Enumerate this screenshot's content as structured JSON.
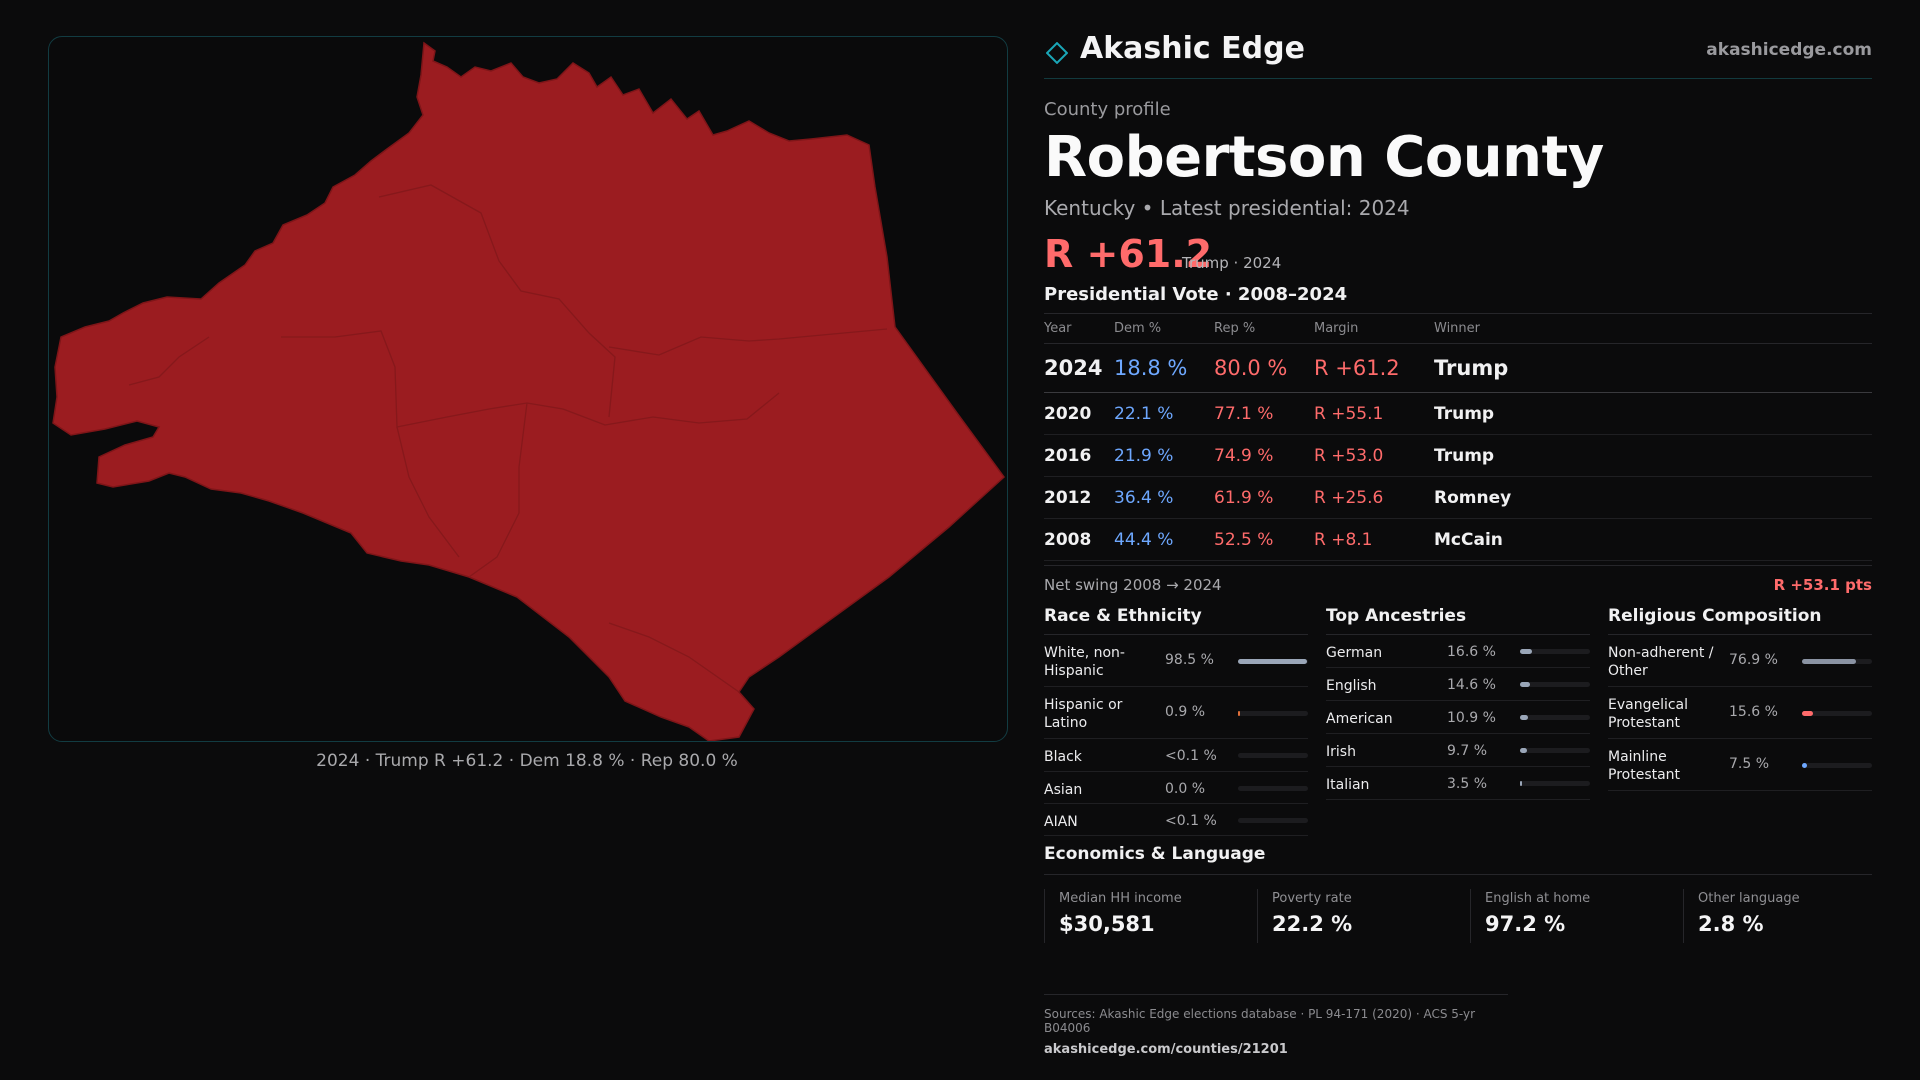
{
  "colors": {
    "rep": "#ff6b6b",
    "dem": "#6ea8ff",
    "county_fill": "#9b1c20",
    "accent": "#1aa7b8"
  },
  "map": {
    "caption": "2024 · Trump R +61.2 · Dem 18.8 % · Rep 80.0 %"
  },
  "brand": {
    "icon": "diamond-icon",
    "name": "Akashic Edge",
    "url": "akashicedge.com"
  },
  "header": {
    "eyebrow": "County profile",
    "title": "Robertson County",
    "subtitle": "Kentucky • Latest presidential: 2024",
    "margin": "R +61.2",
    "margin_sub": "Trump · 2024"
  },
  "vote": {
    "title": "Presidential Vote · 2008–2024",
    "columns": {
      "year": "Year",
      "dem": "Dem %",
      "rep": "Rep %",
      "margin": "Margin",
      "winner": "Winner"
    },
    "rows": [
      {
        "year": "2024",
        "dem": "18.8 %",
        "rep": "80.0 %",
        "margin": "R +61.2",
        "winner": "Trump"
      },
      {
        "year": "2020",
        "dem": "22.1 %",
        "rep": "77.1 %",
        "margin": "R +55.1",
        "winner": "Trump"
      },
      {
        "year": "2016",
        "dem": "21.9 %",
        "rep": "74.9 %",
        "margin": "R +53.0",
        "winner": "Trump"
      },
      {
        "year": "2012",
        "dem": "36.4 %",
        "rep": "61.9 %",
        "margin": "R +25.6",
        "winner": "Romney"
      },
      {
        "year": "2008",
        "dem": "44.4 %",
        "rep": "52.5 %",
        "margin": "R +8.1",
        "winner": "McCain"
      }
    ],
    "swing_label": "Net swing 2008 → 2024",
    "swing_value": "R +53.1 pts"
  },
  "race": {
    "title": "Race & Ethnicity",
    "items": [
      {
        "label": "White, non-Hispanic",
        "value": "98.5 %",
        "level": 0.985
      },
      {
        "label": "Hispanic or Latino",
        "value": "0.9 %",
        "level": 0.009
      },
      {
        "label": "Black",
        "value": "<0.1 %",
        "level": 0
      },
      {
        "label": "Asian",
        "value": "0.0 %",
        "level": 0
      },
      {
        "label": "AIAN",
        "value": "<0.1 %",
        "level": 0
      }
    ]
  },
  "ancestry": {
    "title": "Top Ancestries",
    "items": [
      {
        "label": "German",
        "value": "16.6 %",
        "level": 0.166
      },
      {
        "label": "English",
        "value": "14.6 %",
        "level": 0.146
      },
      {
        "label": "American",
        "value": "10.9 %",
        "level": 0.109
      },
      {
        "label": "Irish",
        "value": "9.7 %",
        "level": 0.097
      },
      {
        "label": "Italian",
        "value": "3.5 %",
        "level": 0.035
      }
    ]
  },
  "religion": {
    "title": "Religious Composition",
    "items": [
      {
        "label": "Non-adherent / Other",
        "value": "76.9 %",
        "level": 0.769
      },
      {
        "label": "Evangelical Protestant",
        "value": "15.6 %",
        "level": 0.156
      },
      {
        "label": "Mainline Protestant",
        "value": "7.5 %",
        "level": 0.075
      }
    ]
  },
  "economics": {
    "title": "Economics & Language",
    "cells": [
      {
        "label": "Median HH income",
        "value": "$30,581"
      },
      {
        "label": "Poverty rate",
        "value": "22.2 %"
      },
      {
        "label": "English at home",
        "value": "97.2 %"
      },
      {
        "label": "Other language",
        "value": "2.8 %"
      }
    ]
  },
  "sources": {
    "line": "Sources: Akashic Edge elections database · PL 94-171 (2020) · ACS 5-yr B04006",
    "link": "akashicedge.com/counties/21201"
  }
}
